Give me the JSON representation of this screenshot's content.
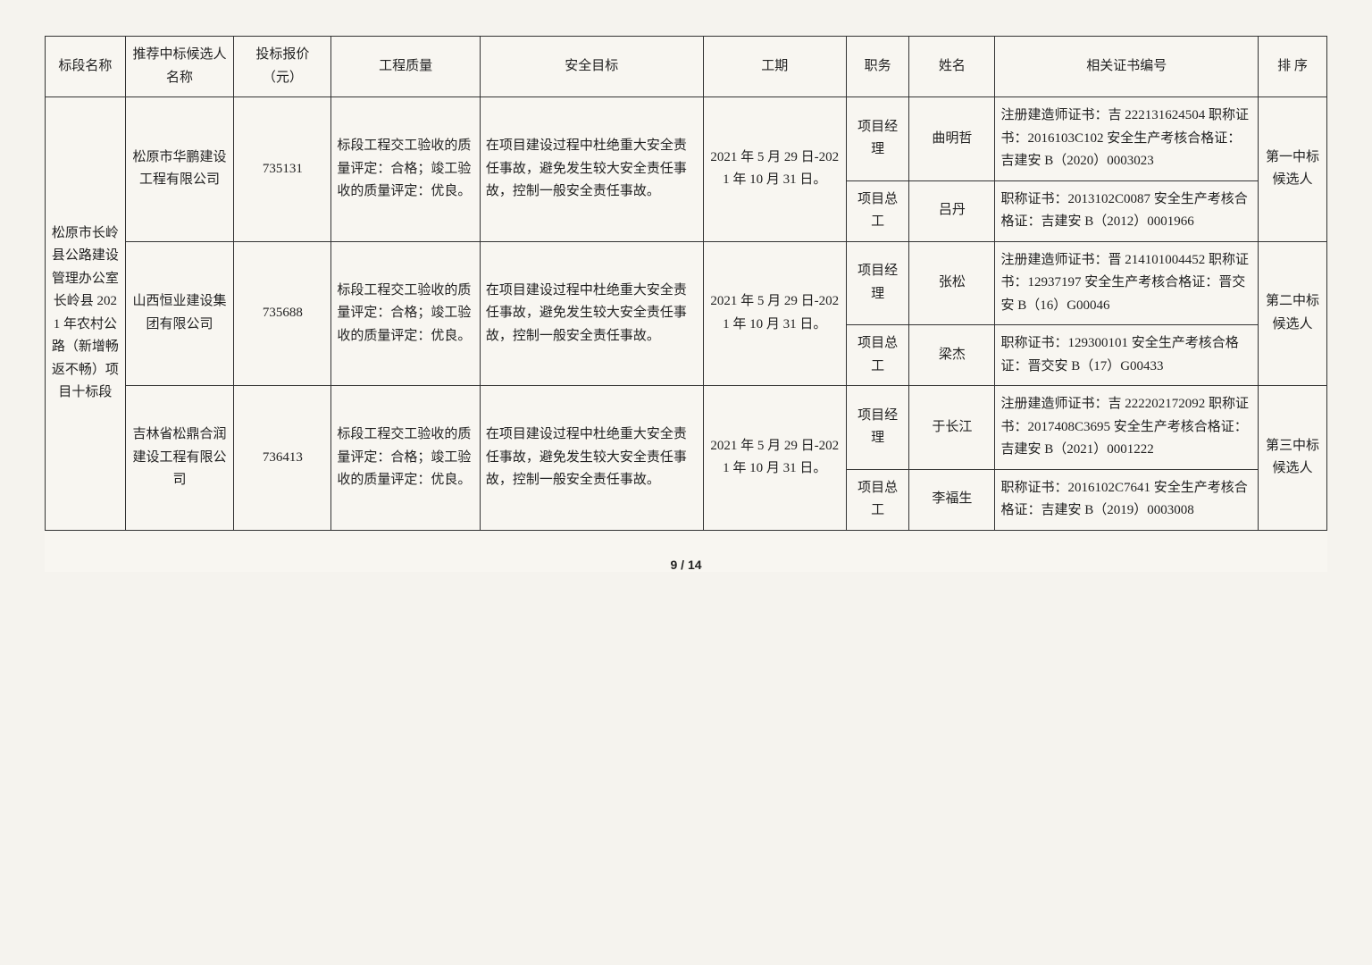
{
  "headers": {
    "section": "标段名称",
    "bidder": "推荐中标候选人名称",
    "price": "投标报价（元）",
    "quality": "工程质量",
    "safety": "安全目标",
    "period": "工期",
    "role": "职务",
    "name": "姓名",
    "cert": "相关证书编号",
    "rank": "排 序"
  },
  "section_name": "松原市长岭县公路建设管理办公室长岭县 2021 年农村公路（新增畅返不畅）项目十标段",
  "candidates": [
    {
      "bidder": "松原市华鹏建设工程有限公司",
      "price": "735131",
      "quality": "标段工程交工验收的质量评定：合格；竣工验收的质量评定：优良。",
      "safety": "在项目建设过程中杜绝重大安全责任事故，避免发生较大安全责任事故，控制一般安全责任事故。",
      "period": "2021 年 5 月 29 日-2021 年 10 月 31 日。",
      "personnel": [
        {
          "role": "项目经理",
          "name": "曲明哲",
          "cert": "注册建造师证书：吉 222131624504\n职称证书：2016103C102\n安全生产考核合格证：吉建安 B（2020）0003023"
        },
        {
          "role": "项目总工",
          "name": "吕丹",
          "cert": "职称证书：2013102C0087\n安全生产考核合格证：吉建安 B（2012）0001966"
        }
      ],
      "rank": "第一中标候选人"
    },
    {
      "bidder": "山西恒业建设集团有限公司",
      "price": "735688",
      "quality": "标段工程交工验收的质量评定：合格；竣工验收的质量评定：优良。",
      "safety": "在项目建设过程中杜绝重大安全责任事故，避免发生较大安全责任事故，控制一般安全责任事故。",
      "period": "2021 年 5 月 29 日-2021 年 10 月 31 日。",
      "personnel": [
        {
          "role": "项目经理",
          "name": "张松",
          "cert": "注册建造师证书：晋 214101004452\n职称证书：12937197\n安全生产考核合格证：晋交安 B（16）G00046"
        },
        {
          "role": "项目总工",
          "name": "梁杰",
          "cert": "职称证书：129300101\n安全生产考核合格证：晋交安 B（17）G00433"
        }
      ],
      "rank": "第二中标候选人"
    },
    {
      "bidder": "吉林省松鼎合润建设工程有限公司",
      "price": "736413",
      "quality": "标段工程交工验收的质量评定：合格；竣工验收的质量评定：优良。",
      "safety": "在项目建设过程中杜绝重大安全责任事故，避免发生较大安全责任事故，控制一般安全责任事故。",
      "period": "2021 年 5 月 29 日-2021 年 10 月 31 日。",
      "personnel": [
        {
          "role": "项目经理",
          "name": "于长江",
          "cert": "注册建造师证书：吉 222202172092\n职称证书：2017408C3695\n安全生产考核合格证：吉建安 B（2021）0001222"
        },
        {
          "role": "项目总工",
          "name": "李福生",
          "cert": "职称证书：2016102C7641\n安全生产考核合格证：吉建安 B（2019）0003008"
        }
      ],
      "rank": "第三中标候选人"
    }
  ],
  "page_number": "9 / 14",
  "style": {
    "border_color": "#333",
    "background": "#f8f6f1",
    "font_family": "SimSun",
    "header_fontsize": 15,
    "cell_fontsize": 15
  }
}
